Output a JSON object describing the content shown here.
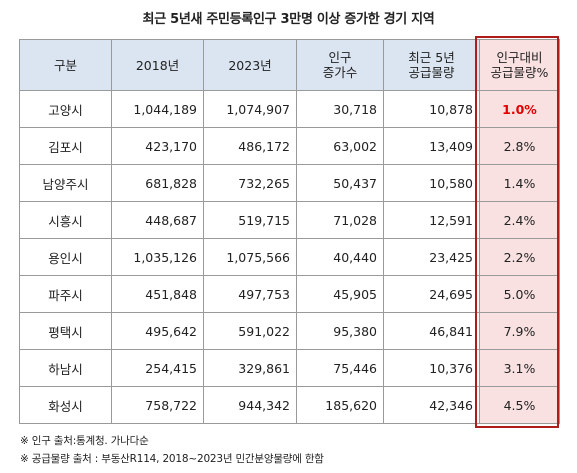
{
  "title": "최근 5년새 주민등록인구 3만명 이상 증가한 경기 지역",
  "table": {
    "headers": {
      "region": "구분",
      "y2018": "2018년",
      "y2023": "2023년",
      "increase_line1": "인구",
      "increase_line2": "증가수",
      "supply_line1": "최근 5년",
      "supply_line2": "공급물량",
      "ratio_line1": "인구대비",
      "ratio_line2": "공급물량%"
    },
    "rows": [
      {
        "region": "고양시",
        "y2018": "1,044,189",
        "y2023": "1,074,907",
        "increase": "30,718",
        "supply": "10,878",
        "ratio": "1.0%"
      },
      {
        "region": "김포시",
        "y2018": "423,170",
        "y2023": "486,172",
        "increase": "63,002",
        "supply": "13,409",
        "ratio": "2.8%"
      },
      {
        "region": "남양주시",
        "y2018": "681,828",
        "y2023": "732,265",
        "increase": "50,437",
        "supply": "10,580",
        "ratio": "1.4%"
      },
      {
        "region": "시흥시",
        "y2018": "448,687",
        "y2023": "519,715",
        "increase": "71,028",
        "supply": "12,591",
        "ratio": "2.4%"
      },
      {
        "region": "용인시",
        "y2018": "1,035,126",
        "y2023": "1,075,566",
        "increase": "40,440",
        "supply": "23,425",
        "ratio": "2.2%"
      },
      {
        "region": "파주시",
        "y2018": "451,848",
        "y2023": "497,753",
        "increase": "45,905",
        "supply": "24,695",
        "ratio": "5.0%"
      },
      {
        "region": "평택시",
        "y2018": "495,642",
        "y2023": "591,022",
        "increase": "95,380",
        "supply": "46,841",
        "ratio": "7.9%"
      },
      {
        "region": "하남시",
        "y2018": "254,415",
        "y2023": "329,861",
        "increase": "75,446",
        "supply": "10,376",
        "ratio": "3.1%"
      },
      {
        "region": "화성시",
        "y2018": "758,722",
        "y2023": "944,342",
        "increase": "185,620",
        "supply": "42,346",
        "ratio": "4.5%"
      }
    ]
  },
  "notes": [
    "※ 인구 출처:통계청. 가나다순",
    "※ 공급물량 출처 : 부동산R114, 2018~2023년 민간분양물량에 한함"
  ],
  "colors": {
    "header_bg": "#dbe5f1",
    "ratio_bg": "#f9e1e1",
    "highlight_border": "#b01c1c",
    "emphasis_text": "#e00000"
  }
}
